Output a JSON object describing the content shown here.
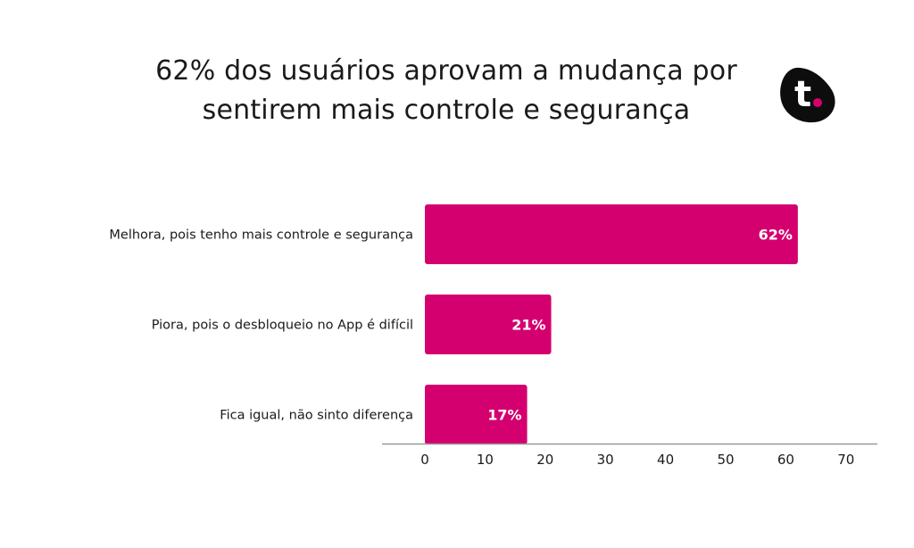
{
  "title": {
    "line1": "62% dos usuários aprovam a mudança por",
    "line2": "sentirem mais controle e segurança"
  },
  "logo": {
    "text": "t.",
    "background_color": "#0d0d0d",
    "letter_color": "#ffffff",
    "dot_color": "#d6006f"
  },
  "chart_data": {
    "type": "bar",
    "orientation": "horizontal",
    "categories": [
      "Melhora, pois tenho mais controle e segurança",
      "Piora, pois o desbloqueio no App é difícil",
      "Fica igual, não sinto diferença"
    ],
    "values": [
      62,
      21,
      17
    ],
    "data_labels": [
      "62%",
      "21%",
      "17%"
    ],
    "xlim": [
      0,
      70
    ],
    "xticks": [
      0,
      10,
      20,
      30,
      40,
      50,
      60,
      70
    ],
    "bar_color": "#d4006f",
    "grid": false,
    "xlabel": "",
    "ylabel": ""
  }
}
